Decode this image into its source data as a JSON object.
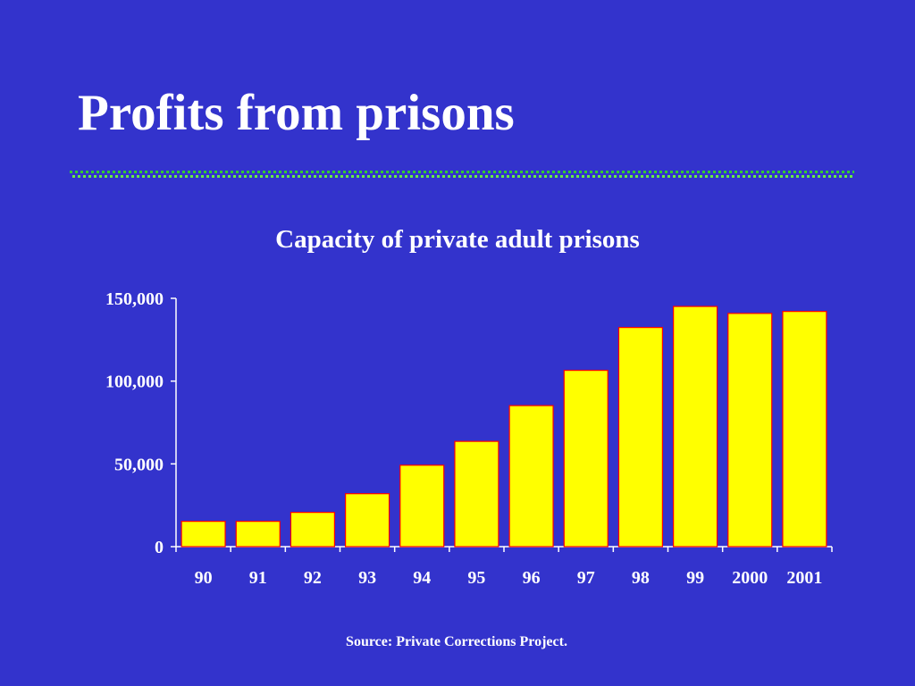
{
  "slide": {
    "title": "Profits from prisons",
    "source": "Source: Private Corrections Project.",
    "colors": {
      "background": "#3333cc",
      "text": "#ffffff",
      "rule": "#33cc33"
    }
  },
  "chart_data": {
    "type": "bar",
    "title": "Capacity of private adult prisons",
    "xlabel": "",
    "ylabel": "",
    "categories": [
      "90",
      "91",
      "92",
      "93",
      "94",
      "95",
      "96",
      "97",
      "98",
      "99",
      "2000",
      "2001"
    ],
    "values": [
      15300,
      15300,
      20700,
      32000,
      49200,
      63600,
      85200,
      106500,
      132400,
      145100,
      140900,
      142100
    ],
    "ylim": [
      0,
      150000
    ],
    "yticks": [
      0,
      50000,
      100000,
      150000
    ],
    "ytick_labels": [
      "0",
      "50,000",
      "100,000",
      "150,000"
    ],
    "grid": false,
    "legend": "none",
    "bar_color": "#ffff00",
    "bar_edge_color": "#ff0000"
  }
}
